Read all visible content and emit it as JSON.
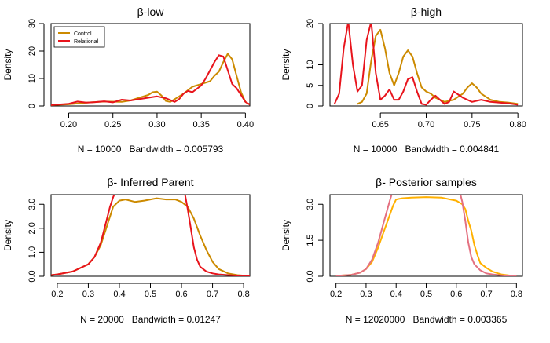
{
  "chart_data": [
    {
      "type": "line",
      "title": "β-low",
      "ylabel": "Density",
      "xlabel": "N = 10000   Bandwidth = 0.005793",
      "xlim": [
        0.18,
        0.405
      ],
      "ylim": [
        0,
        30
      ],
      "xticks": [
        0.2,
        0.25,
        0.3,
        0.35,
        0.4
      ],
      "xtick_labels": [
        "0.20",
        "0.25",
        "0.30",
        "0.35",
        "0.40"
      ],
      "yticks": [
        0,
        10,
        20,
        30
      ],
      "ytick_labels": [
        "0",
        "10",
        "20",
        "30"
      ],
      "legend": {
        "position": "top-left",
        "items": [
          {
            "label": "Control",
            "color": "#cc8a00"
          },
          {
            "label": "Relational",
            "color": "#e8141c"
          }
        ]
      },
      "series": [
        {
          "name": "Control",
          "color": "#cc8a00",
          "x": [
            0.18,
            0.2,
            0.22,
            0.24,
            0.26,
            0.27,
            0.28,
            0.29,
            0.295,
            0.3,
            0.305,
            0.31,
            0.315,
            0.32,
            0.33,
            0.34,
            0.35,
            0.36,
            0.365,
            0.37,
            0.375,
            0.38,
            0.385,
            0.39,
            0.395,
            0.4,
            0.405
          ],
          "y": [
            0.3,
            0.6,
            1.2,
            1.6,
            1.5,
            2.0,
            3.0,
            4.0,
            5.0,
            5.2,
            3.8,
            1.8,
            1.5,
            2.5,
            4.5,
            7.0,
            8.0,
            9.0,
            11.0,
            12.5,
            16.0,
            19.0,
            17.0,
            11.0,
            5.0,
            1.5,
            0.5
          ]
        },
        {
          "name": "Relational",
          "color": "#e8141c",
          "x": [
            0.18,
            0.2,
            0.21,
            0.22,
            0.23,
            0.24,
            0.25,
            0.26,
            0.27,
            0.28,
            0.29,
            0.3,
            0.31,
            0.32,
            0.325,
            0.33,
            0.335,
            0.34,
            0.35,
            0.355,
            0.36,
            0.365,
            0.37,
            0.375,
            0.38,
            0.385,
            0.39,
            0.395,
            0.4,
            0.405
          ],
          "y": [
            0.3,
            0.8,
            1.6,
            1.2,
            1.4,
            1.7,
            1.3,
            2.3,
            2.0,
            2.5,
            3.0,
            3.5,
            2.8,
            1.5,
            2.5,
            4.5,
            5.5,
            5.0,
            7.5,
            10.0,
            13.0,
            16.0,
            18.5,
            18.0,
            13.0,
            8.0,
            6.5,
            4.0,
            1.5,
            0.5
          ]
        }
      ]
    },
    {
      "type": "line",
      "title": "β-high",
      "ylabel": "Density",
      "xlabel": "N = 10000   Bandwidth = 0.004841",
      "xlim": [
        0.595,
        0.805
      ],
      "ylim": [
        0,
        20
      ],
      "xticks": [
        0.65,
        0.7,
        0.75,
        0.8
      ],
      "xtick_labels": [
        "0.65",
        "0.70",
        "0.75",
        "0.80"
      ],
      "yticks": [
        0,
        5,
        10,
        20
      ],
      "ytick_labels": [
        "0",
        "5",
        "10",
        "20"
      ],
      "series": [
        {
          "name": "Control",
          "color": "#cc8a00",
          "x": [
            0.625,
            0.63,
            0.635,
            0.64,
            0.645,
            0.65,
            0.655,
            0.66,
            0.665,
            0.67,
            0.675,
            0.68,
            0.685,
            0.69,
            0.695,
            0.7,
            0.705,
            0.71,
            0.72,
            0.73,
            0.74,
            0.745,
            0.75,
            0.755,
            0.76,
            0.77,
            0.78,
            0.79,
            0.8
          ],
          "y": [
            0.5,
            1.0,
            3.0,
            11.0,
            17.0,
            18.5,
            14.0,
            8.0,
            5.0,
            8.0,
            12.0,
            13.5,
            12.0,
            8.0,
            4.5,
            3.5,
            3.0,
            2.0,
            1.0,
            1.5,
            3.0,
            4.5,
            5.5,
            4.5,
            3.0,
            1.5,
            1.0,
            0.8,
            0.5
          ]
        },
        {
          "name": "Relational",
          "color": "#e8141c",
          "x": [
            0.6,
            0.605,
            0.61,
            0.615,
            0.62,
            0.625,
            0.63,
            0.635,
            0.64,
            0.645,
            0.65,
            0.655,
            0.66,
            0.665,
            0.67,
            0.675,
            0.68,
            0.685,
            0.69,
            0.695,
            0.7,
            0.705,
            0.71,
            0.715,
            0.72,
            0.725,
            0.73,
            0.74,
            0.75,
            0.76,
            0.77,
            0.78,
            0.79,
            0.8
          ],
          "y": [
            0.5,
            3.0,
            14.0,
            20.5,
            10.0,
            3.5,
            5.0,
            16.0,
            20.5,
            8.0,
            1.5,
            2.5,
            4.0,
            1.5,
            1.5,
            3.5,
            6.5,
            7.0,
            3.5,
            0.5,
            0.3,
            1.5,
            2.5,
            1.5,
            0.5,
            1.0,
            3.5,
            2.0,
            1.0,
            1.5,
            1.0,
            0.8,
            0.6,
            0.3
          ]
        }
      ]
    },
    {
      "type": "line",
      "title": "β- Inferred Parent",
      "ylabel": "Density",
      "xlabel": "N = 20000   Bandwidth = 0.01247",
      "xlim": [
        0.18,
        0.82
      ],
      "ylim": [
        0,
        3.4
      ],
      "xticks": [
        0.2,
        0.3,
        0.4,
        0.5,
        0.6,
        0.7,
        0.8
      ],
      "xtick_labels": [
        "0.2",
        "0.3",
        "0.4",
        "0.5",
        "0.6",
        "0.7",
        "0.8"
      ],
      "yticks": [
        0.0,
        1.0,
        2.0,
        3.0
      ],
      "ytick_labels": [
        "0.0",
        "1.0",
        "2.0",
        "3.0"
      ],
      "series": [
        {
          "name": "Control",
          "color": "#cc8a00",
          "x": [
            0.18,
            0.2,
            0.25,
            0.3,
            0.32,
            0.34,
            0.36,
            0.38,
            0.4,
            0.42,
            0.45,
            0.48,
            0.5,
            0.52,
            0.55,
            0.58,
            0.6,
            0.62,
            0.64,
            0.66,
            0.68,
            0.7,
            0.72,
            0.75,
            0.78,
            0.8,
            0.82
          ],
          "y": [
            0.05,
            0.08,
            0.2,
            0.5,
            0.8,
            1.3,
            2.1,
            2.9,
            3.15,
            3.2,
            3.1,
            3.15,
            3.2,
            3.25,
            3.2,
            3.2,
            3.1,
            2.9,
            2.4,
            1.7,
            1.1,
            0.6,
            0.3,
            0.12,
            0.05,
            0.03,
            0.02
          ]
        },
        {
          "name": "Relational",
          "color": "#e8141c",
          "x": [
            0.18,
            0.2,
            0.25,
            0.3,
            0.32,
            0.34,
            0.36,
            0.37,
            0.38,
            0.39,
            0.4,
            0.45,
            0.5,
            0.55,
            0.6,
            0.61,
            0.62,
            0.63,
            0.64,
            0.65,
            0.66,
            0.68,
            0.7,
            0.72,
            0.75,
            0.78,
            0.8,
            0.82
          ],
          "y": [
            0.05,
            0.08,
            0.2,
            0.5,
            0.8,
            1.4,
            2.4,
            2.9,
            3.3,
            3.6,
            3.9,
            3.9,
            3.9,
            3.9,
            3.9,
            3.5,
            2.8,
            2.0,
            1.2,
            0.7,
            0.4,
            0.2,
            0.12,
            0.08,
            0.05,
            0.03,
            0.02,
            0.01
          ]
        }
      ]
    },
    {
      "type": "line",
      "title": "β- Posterior samples",
      "ylabel": "Density",
      "xlabel": "N = 12020000   Bandwidth = 0.003365",
      "xlim": [
        0.18,
        0.82
      ],
      "ylim": [
        0,
        3.4
      ],
      "xticks": [
        0.2,
        0.3,
        0.4,
        0.5,
        0.6,
        0.7,
        0.8
      ],
      "xtick_labels": [
        "0.2",
        "0.3",
        "0.4",
        "0.5",
        "0.6",
        "0.7",
        "0.8"
      ],
      "yticks": [
        0.0,
        1.5,
        3.0
      ],
      "ytick_labels": [
        "0.0",
        "1.5",
        "3.0"
      ],
      "series": [
        {
          "name": "Control",
          "color": "#ffb000",
          "x": [
            0.2,
            0.25,
            0.28,
            0.3,
            0.32,
            0.34,
            0.36,
            0.38,
            0.39,
            0.4,
            0.42,
            0.45,
            0.5,
            0.55,
            0.58,
            0.6,
            0.62,
            0.63,
            0.64,
            0.65,
            0.66,
            0.67,
            0.68,
            0.69,
            0.7,
            0.72,
            0.75,
            0.78,
            0.8
          ],
          "y": [
            0.02,
            0.06,
            0.15,
            0.3,
            0.6,
            1.2,
            1.9,
            2.6,
            2.95,
            3.2,
            3.25,
            3.28,
            3.3,
            3.28,
            3.2,
            3.15,
            3.0,
            2.8,
            2.3,
            1.9,
            1.3,
            0.9,
            0.55,
            0.45,
            0.35,
            0.2,
            0.08,
            0.03,
            0.02
          ]
        },
        {
          "name": "Relational",
          "color": "#e47080",
          "x": [
            0.2,
            0.25,
            0.28,
            0.3,
            0.32,
            0.34,
            0.36,
            0.38,
            0.39,
            0.4,
            0.45,
            0.5,
            0.55,
            0.6,
            0.61,
            0.62,
            0.63,
            0.64,
            0.65,
            0.66,
            0.68,
            0.7,
            0.72,
            0.75,
            0.78,
            0.8
          ],
          "y": [
            0.02,
            0.06,
            0.15,
            0.3,
            0.7,
            1.4,
            2.3,
            3.2,
            3.6,
            3.9,
            3.9,
            3.9,
            3.9,
            3.9,
            3.6,
            3.1,
            2.3,
            1.4,
            0.8,
            0.5,
            0.25,
            0.12,
            0.08,
            0.04,
            0.02,
            0.01
          ]
        }
      ]
    }
  ]
}
